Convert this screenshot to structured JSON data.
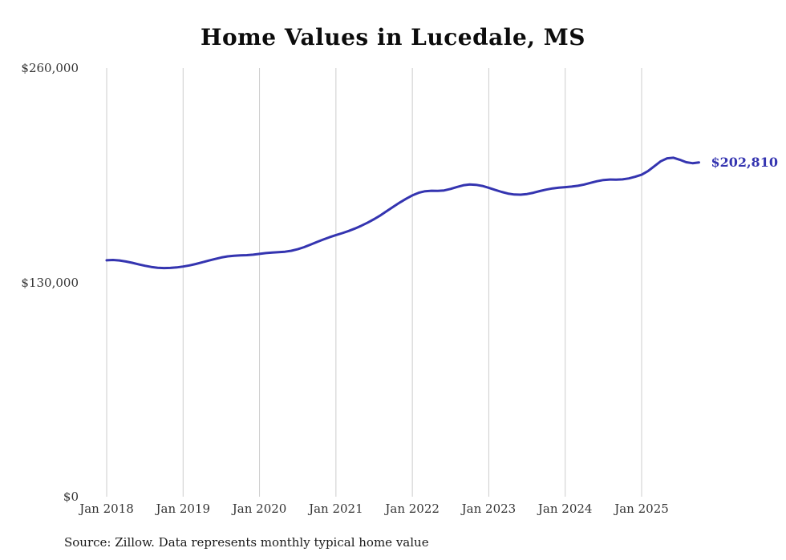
{
  "chart_data": {
    "type": "line",
    "title": "Home Values in Lucedale, MS",
    "series_name": "Monthly typical home value",
    "unit": "USD",
    "x_start": "Jan 2018",
    "x_frequency": "monthly",
    "ylim": [
      0,
      260000
    ],
    "grid": "vertical-only",
    "legend_position": "none",
    "line_color": "#3434b0",
    "grid_color": "#cccccc",
    "tick_text_color": "#333333",
    "end_label": "$202,810",
    "end_value": 202810,
    "y_ticks": [
      {
        "value": 0,
        "label": "$0"
      },
      {
        "value": 130000,
        "label": "$130,000"
      },
      {
        "value": 260000,
        "label": "$260,000"
      }
    ],
    "x_ticks": [
      {
        "index": 0,
        "label": "Jan 2018"
      },
      {
        "index": 12,
        "label": "Jan 2019"
      },
      {
        "index": 24,
        "label": "Jan 2020"
      },
      {
        "index": 36,
        "label": "Jan 2021"
      },
      {
        "index": 48,
        "label": "Jan 2022"
      },
      {
        "index": 60,
        "label": "Jan 2023"
      },
      {
        "index": 72,
        "label": "Jan 2024"
      },
      {
        "index": 84,
        "label": "Jan 2025"
      }
    ],
    "values": [
      143400,
      143600,
      143300,
      142700,
      141900,
      141000,
      140100,
      139400,
      138900,
      138700,
      138800,
      139100,
      139600,
      140300,
      141200,
      142200,
      143200,
      144200,
      145100,
      145800,
      146200,
      146400,
      146500,
      146800,
      147300,
      147800,
      148100,
      148300,
      148600,
      149200,
      150100,
      151400,
      152900,
      154500,
      156000,
      157400,
      158700,
      159900,
      161200,
      162700,
      164400,
      166300,
      168400,
      170700,
      173300,
      175900,
      178400,
      180700,
      182800,
      184400,
      185300,
      185600,
      185500,
      185800,
      186700,
      187900,
      188900,
      189400,
      189200,
      188500,
      187400,
      186100,
      184900,
      183900,
      183300,
      183200,
      183600,
      184400,
      185400,
      186300,
      187000,
      187500,
      187800,
      188100,
      188600,
      189400,
      190400,
      191400,
      192100,
      192400,
      192300,
      192500,
      193100,
      194100,
      195300,
      197500,
      200500,
      203500,
      205300,
      205600,
      204400,
      202900,
      202300,
      202810
    ]
  },
  "footer": {
    "source": "Source: Zillow. Data represents monthly typical home value"
  }
}
